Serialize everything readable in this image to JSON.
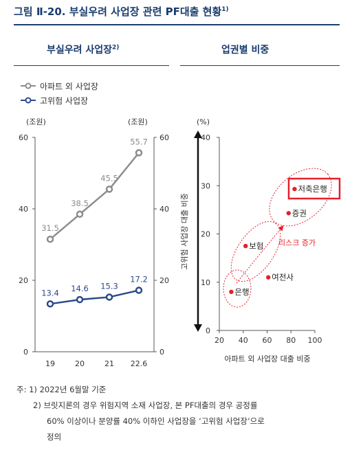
{
  "title": "그림 Ⅱ-20. 부실우려 사업장 관련 PF대출 현황",
  "title_sup": "1)",
  "notes": {
    "line1": "주: 1) 2022년 6월말 기준",
    "line2": "2) 브릿지론의 경우 위험지역 소재 사업장, 본 PF대출의 경우 공정률",
    "line3": "60% 이상이나 분양률 40% 이하인 사업장을 ‘고위험 사업장’으로",
    "line4": "정의"
  },
  "chart_data": [
    {
      "type": "line",
      "title": "부실우려 사업장",
      "title_sup": "2)",
      "categories": [
        "19",
        "20",
        "21",
        "22.6"
      ],
      "series": [
        {
          "name": "아파트 외 사업장",
          "color": "#8c8c8c",
          "values": [
            31.5,
            38.5,
            45.5,
            55.7
          ]
        },
        {
          "name": "고위험 사업장",
          "color": "#2b4a8b",
          "values": [
            13.4,
            14.6,
            15.3,
            17.2
          ]
        }
      ],
      "left_unit": "(조원)",
      "right_unit": "(조원)",
      "ylim": [
        0,
        60
      ],
      "yticks": [
        "0",
        "20",
        "40",
        "60"
      ]
    },
    {
      "type": "scatter",
      "title": "업권별 비중",
      "xlabel": "아파트 외 사업장 대출 비중",
      "ylabel": "고위험 사업장 대출 비중",
      "y_unit": "(%)",
      "xlim": [
        20,
        100
      ],
      "ylim": [
        0,
        40
      ],
      "xticks": [
        "20",
        "40",
        "60",
        "80",
        "100"
      ],
      "yticks": [
        "0",
        "10",
        "20",
        "30",
        "40"
      ],
      "points": [
        {
          "label": "은행",
          "x": 30,
          "y": 8
        },
        {
          "label": "보험",
          "x": 42,
          "y": 17.5
        },
        {
          "label": "여전사",
          "x": 61,
          "y": 11
        },
        {
          "label": "증권",
          "x": 78,
          "y": 24.3
        },
        {
          "label": "저축은행",
          "x": 83,
          "y": 29.3
        }
      ],
      "point_color": "#e6202a",
      "highlight_color": "#e6202a",
      "annotation": "리스크 증가"
    }
  ]
}
